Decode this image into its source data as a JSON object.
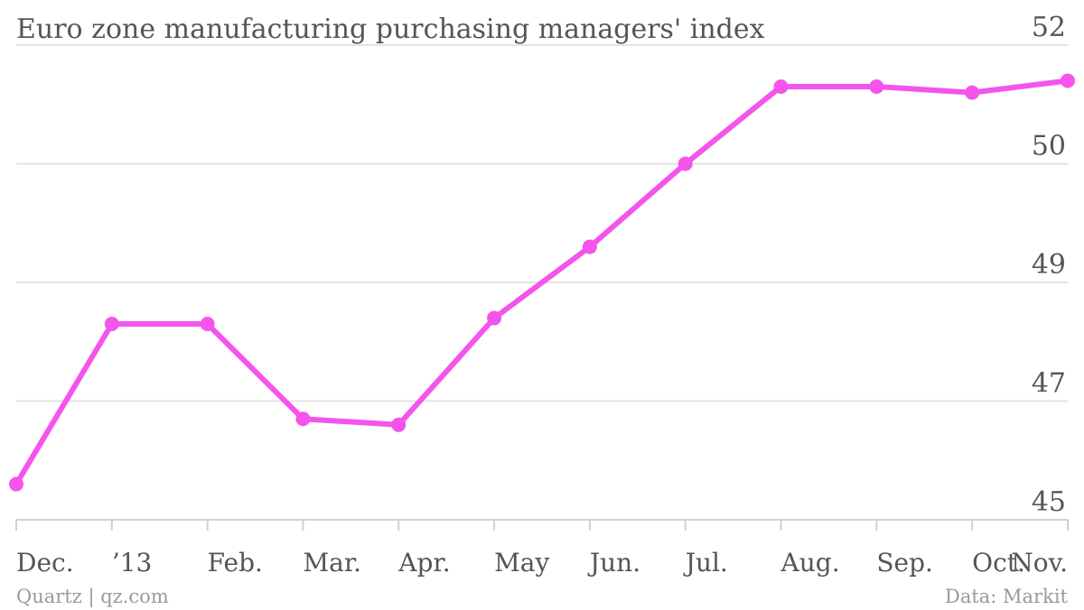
{
  "chart_data": {
    "type": "line",
    "title": "Euro zone manufacturing purchasing managers' index",
    "categories": [
      "Dec.",
      "’13",
      "Feb.",
      "Mar.",
      "Apr.",
      "May",
      "Jun.",
      "Jul.",
      "Aug.",
      "Sep.",
      "Oct.",
      "Nov."
    ],
    "series": [
      {
        "values": [
          45.6,
          48.3,
          48.3,
          46.7,
          46.6,
          48.4,
          49.3,
          50.0,
          51.3,
          51.3,
          51.2,
          51.4
        ],
        "color": "#f554ec"
      }
    ],
    "yticks": [
      45,
      47,
      49,
      50,
      52
    ],
    "ylim": [
      45,
      52
    ],
    "grid": true,
    "y_axis_side": "right",
    "xlabel": "",
    "ylabel": ""
  },
  "footer": {
    "source_left": "Quartz | qz.com",
    "source_right": "Data: Markit"
  }
}
